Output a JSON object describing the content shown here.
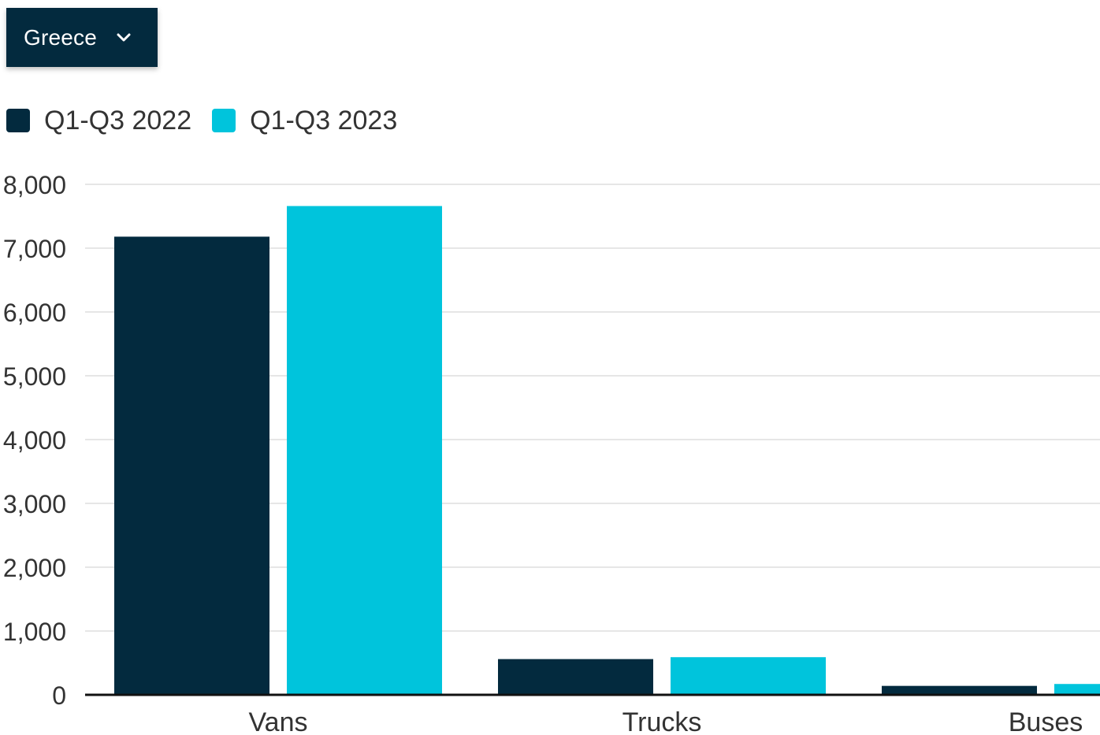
{
  "filter": {
    "selected": "Greece"
  },
  "colors": {
    "series_2022": "#032a3e",
    "series_2023": "#00c4dc",
    "grid": "#e6e6e6",
    "axis": "#111111",
    "tick_text": "#333333"
  },
  "icons": {
    "dropdown": "chevron-down-icon"
  },
  "chart_data": {
    "type": "bar",
    "categories": [
      "Vans",
      "Trucks",
      "Buses"
    ],
    "series": [
      {
        "name": "Q1-Q3 2022",
        "values": [
          7180,
          560,
          140
        ]
      },
      {
        "name": "Q1-Q3 2023",
        "values": [
          7660,
          590,
          170
        ]
      }
    ],
    "y_ticks": [
      "0",
      "1,000",
      "2,000",
      "3,000",
      "4,000",
      "5,000",
      "6,000",
      "7,000",
      "8,000"
    ],
    "ylim": [
      0,
      8000
    ],
    "grid": true,
    "legend_position": "top-left"
  }
}
